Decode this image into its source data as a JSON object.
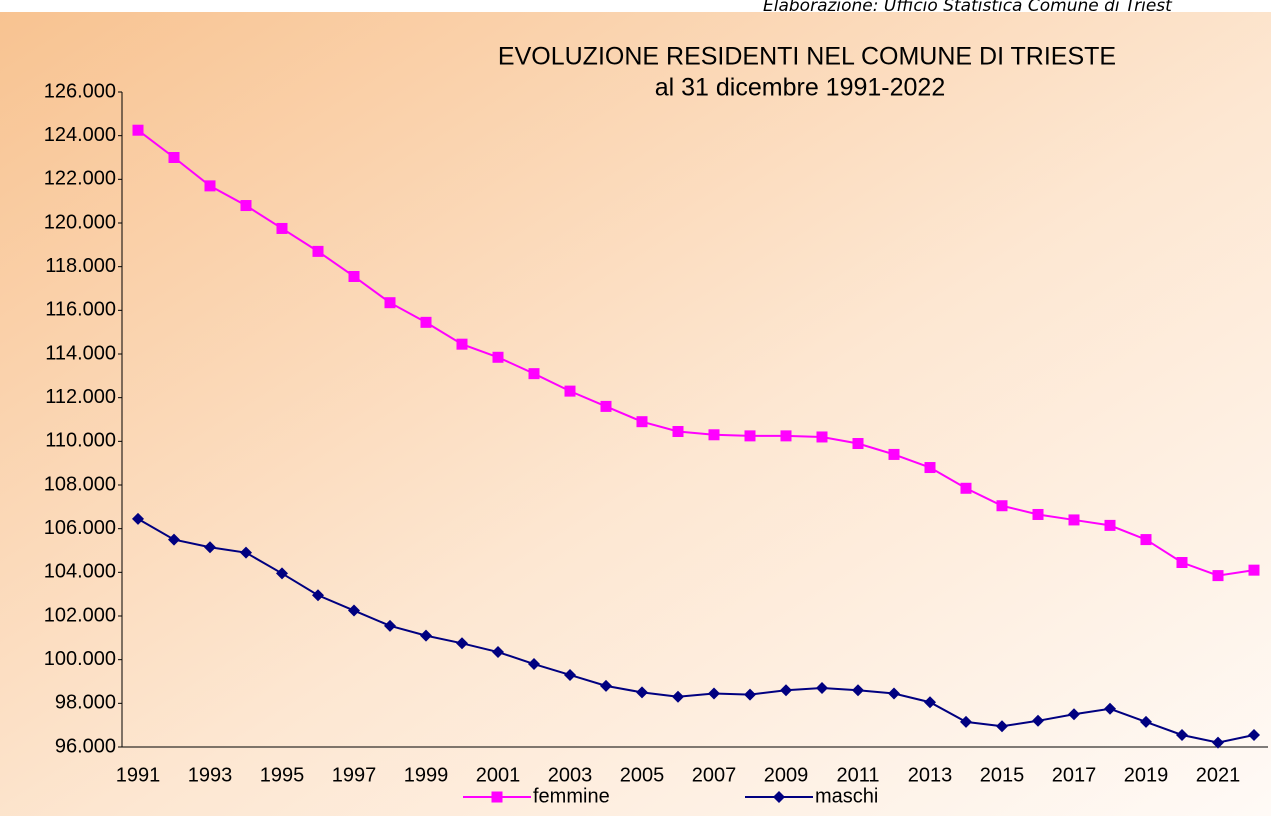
{
  "chart_data": {
    "type": "line",
    "source": "Elaborazione: Ufficio Statistica Comune di Triest",
    "title": "EVOLUZIONE RESIDENTI  NEL COMUNE DI TRIESTE",
    "subtitle": "al 31 dicembre  1991-2022",
    "categories": [
      "1991",
      null,
      "1993",
      null,
      "1995",
      null,
      "1997",
      null,
      "1999",
      null,
      "2001",
      null,
      "2003",
      null,
      "2005",
      null,
      "2007",
      null,
      "2009",
      null,
      "2011",
      null,
      "2013",
      null,
      "2015",
      null,
      "2017",
      null,
      "2019",
      null,
      "2021",
      null
    ],
    "series": [
      {
        "name": "femmine",
        "color": "#ff00ff",
        "marker": "square",
        "values": [
          124250,
          123000,
          121700,
          120800,
          119750,
          118700,
          117550,
          116350,
          115450,
          114450,
          113850,
          113100,
          112300,
          111600,
          110900,
          110450,
          110300,
          110250,
          110250,
          110200,
          109900,
          109400,
          108800,
          107850,
          107050,
          106650,
          106400,
          106150,
          105500,
          104450,
          103850,
          104100
        ]
      },
      {
        "name": "maschi",
        "color": "#000080",
        "marker": "diamond",
        "values": [
          106450,
          105500,
          105150,
          104900,
          103950,
          102950,
          102250,
          101550,
          101100,
          100750,
          100350,
          99800,
          99300,
          98800,
          98500,
          98300,
          98450,
          98400,
          98600,
          98700,
          98600,
          98450,
          98050,
          97150,
          96950,
          97200,
          97500,
          97750,
          97150,
          96550,
          96200,
          96550
        ]
      }
    ],
    "ylim": [
      96000,
      126000
    ],
    "yticks": [
      {
        "value": 96000,
        "label": "96.000"
      },
      {
        "value": 98000,
        "label": "98.000"
      },
      {
        "value": 100000,
        "label": "100.000"
      },
      {
        "value": 102000,
        "label": "102.000"
      },
      {
        "value": 104000,
        "label": "104.000"
      },
      {
        "value": 106000,
        "label": "106.000"
      },
      {
        "value": 108000,
        "label": "108.000"
      },
      {
        "value": 110000,
        "label": "110.000"
      },
      {
        "value": 112000,
        "label": "112.000"
      },
      {
        "value": 114000,
        "label": "114.000"
      },
      {
        "value": 116000,
        "label": "116.000"
      },
      {
        "value": 118000,
        "label": "118.000"
      },
      {
        "value": 120000,
        "label": "120.000"
      },
      {
        "value": 122000,
        "label": "122.000"
      },
      {
        "value": 124000,
        "label": "124.000"
      },
      {
        "value": 126000,
        "label": "126.000"
      }
    ],
    "grid": false,
    "legend": "bottom"
  }
}
